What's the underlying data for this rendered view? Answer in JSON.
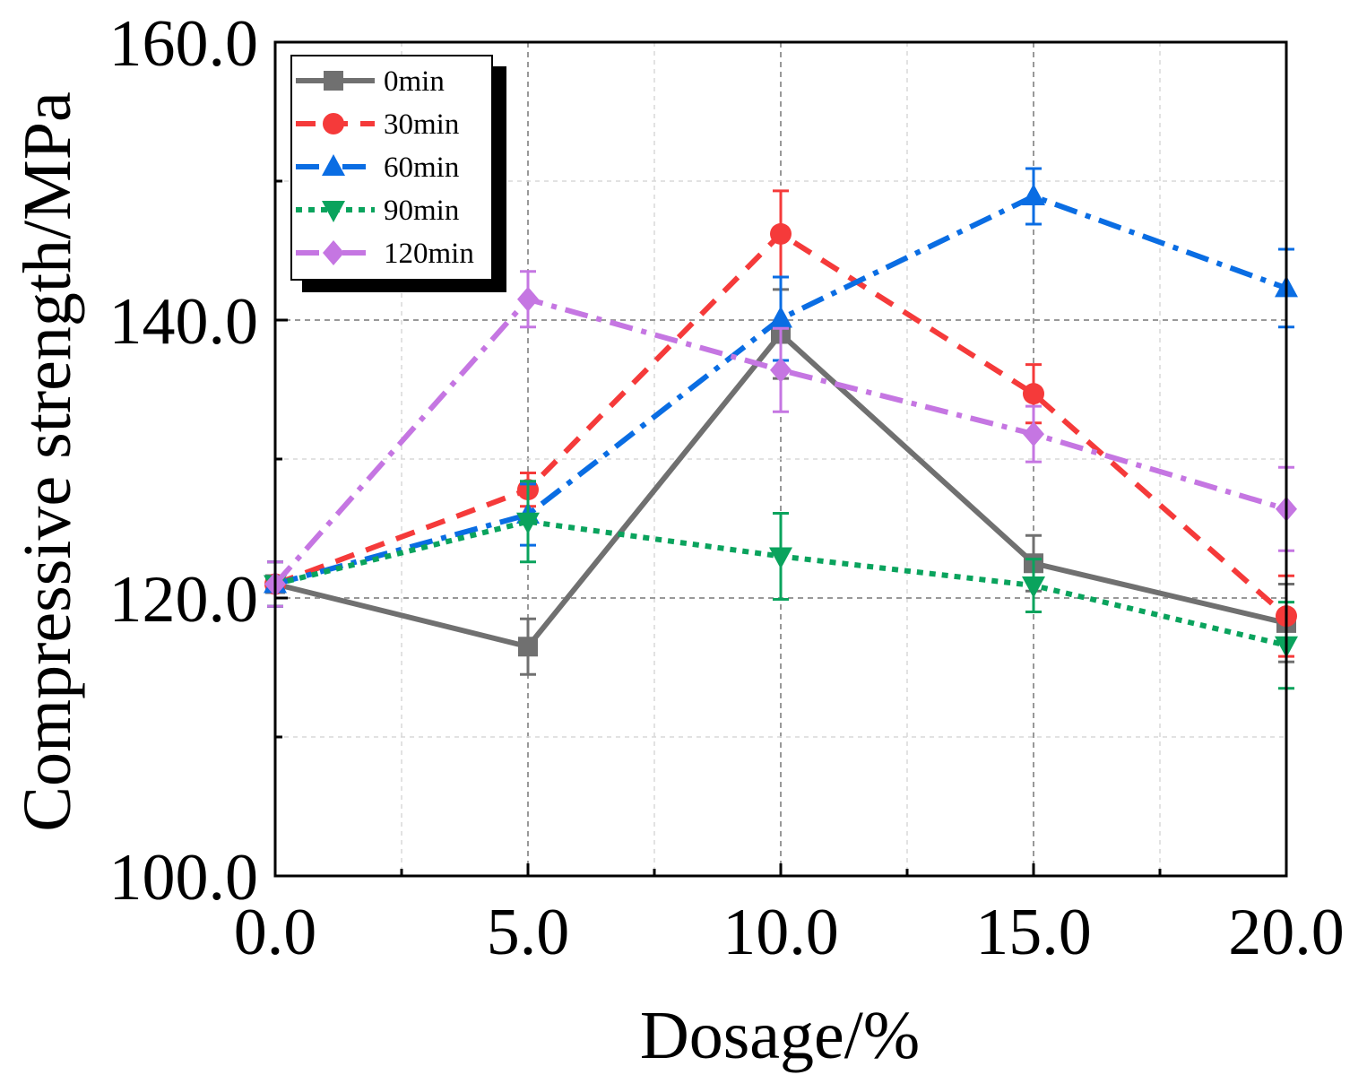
{
  "chart_data": {
    "type": "line",
    "xlabel": "Dosage/%",
    "ylabel": "Compressive strength/MPa",
    "xlim": [
      0,
      20
    ],
    "ylim": [
      100,
      160
    ],
    "xticks": [
      0,
      5,
      10,
      15,
      20
    ],
    "xtick_labels": [
      "0.0",
      "5.0",
      "10.0",
      "15.0",
      "20.0"
    ],
    "yticks": [
      100,
      120,
      140,
      160
    ],
    "ytick_labels": [
      "100.0",
      "120.0",
      "140.0",
      "160.0"
    ],
    "grid": true,
    "legend_position": "top-left",
    "x": [
      0,
      5,
      10,
      15,
      20
    ],
    "series": [
      {
        "name": "0min",
        "color": "#707070",
        "dash": "solid",
        "marker": "square",
        "values": [
          121.0,
          116.5,
          139.0,
          122.5,
          118.2
        ],
        "errors": [
          1.6,
          2.0,
          3.2,
          2.0,
          2.8
        ]
      },
      {
        "name": "30min",
        "color": "#f53a3a",
        "dash": "dash",
        "marker": "circle",
        "values": [
          121.0,
          127.8,
          146.2,
          134.7,
          118.7
        ],
        "errors": [
          1.6,
          1.2,
          3.1,
          2.1,
          2.9
        ]
      },
      {
        "name": "60min",
        "color": "#0a6de3",
        "dash": "dashdot",
        "marker": "triangle-up",
        "values": [
          121.0,
          126.0,
          140.1,
          148.9,
          142.3
        ],
        "errors": [
          1.6,
          2.2,
          3.0,
          2.0,
          2.8
        ]
      },
      {
        "name": "90min",
        "color": "#0aa35d",
        "dash": "dot",
        "marker": "triangle-down",
        "values": [
          121.0,
          125.5,
          123.0,
          120.9,
          116.6
        ],
        "errors": [
          1.6,
          2.9,
          3.1,
          1.9,
          3.1
        ]
      },
      {
        "name": "120min",
        "color": "#c576e2",
        "dash": "dashdot",
        "marker": "diamond",
        "values": [
          121.0,
          141.5,
          136.4,
          131.8,
          126.4
        ],
        "errors": [
          1.6,
          2.0,
          3.0,
          2.0,
          3.0
        ]
      }
    ]
  }
}
